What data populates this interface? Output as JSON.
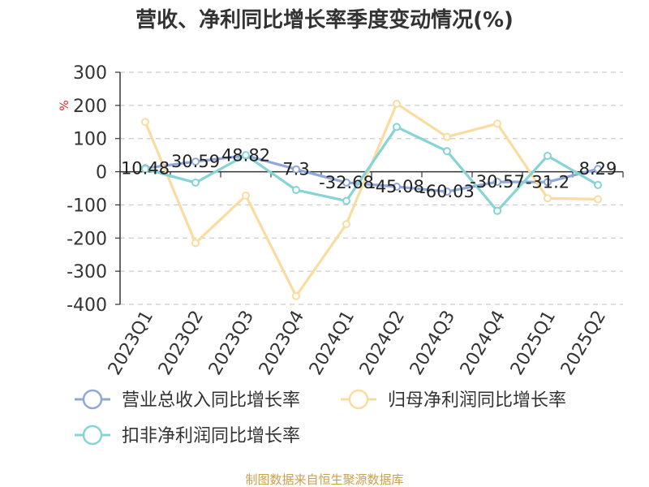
{
  "chart_data": {
    "type": "line",
    "title": "营收、净利同比增长率季度变动情况(%)",
    "ylabel": "%",
    "ylim": [
      -400,
      300
    ],
    "yticks": [
      300,
      200,
      100,
      0,
      -100,
      -200,
      -300,
      -400
    ],
    "grid": true,
    "legend_position": "bottom",
    "categories": [
      "2023Q1",
      "2023Q2",
      "2023Q3",
      "2023Q4",
      "2024Q1",
      "2024Q2",
      "2024Q3",
      "2024Q4",
      "2025Q1",
      "2025Q2"
    ],
    "series": [
      {
        "name": "营业总收入同比增长率",
        "color": "#8fa8d8",
        "values": [
          10.48,
          30.59,
          48.82,
          7.3,
          -32.68,
          -45.08,
          -60.03,
          -30.57,
          -31.2,
          8.29
        ],
        "labels": [
          "10.48",
          "30.59",
          "48.82",
          "7.3",
          "-32.68",
          "-45.08",
          "-60.03",
          "-30.57",
          "-31.2",
          "8.29"
        ]
      },
      {
        "name": "归母净利润同比增长率",
        "color": "#f9dca0",
        "values": [
          150,
          -215,
          -72,
          -375,
          -158,
          205,
          105,
          145,
          -80,
          -83
        ]
      },
      {
        "name": "扣非净利润同比增长率",
        "color": "#86d4d6",
        "values": [
          8,
          -33,
          50,
          -55,
          -88,
          135,
          62,
          -118,
          48,
          -40
        ]
      }
    ],
    "source": "制图数据来自恒生聚源数据库"
  }
}
